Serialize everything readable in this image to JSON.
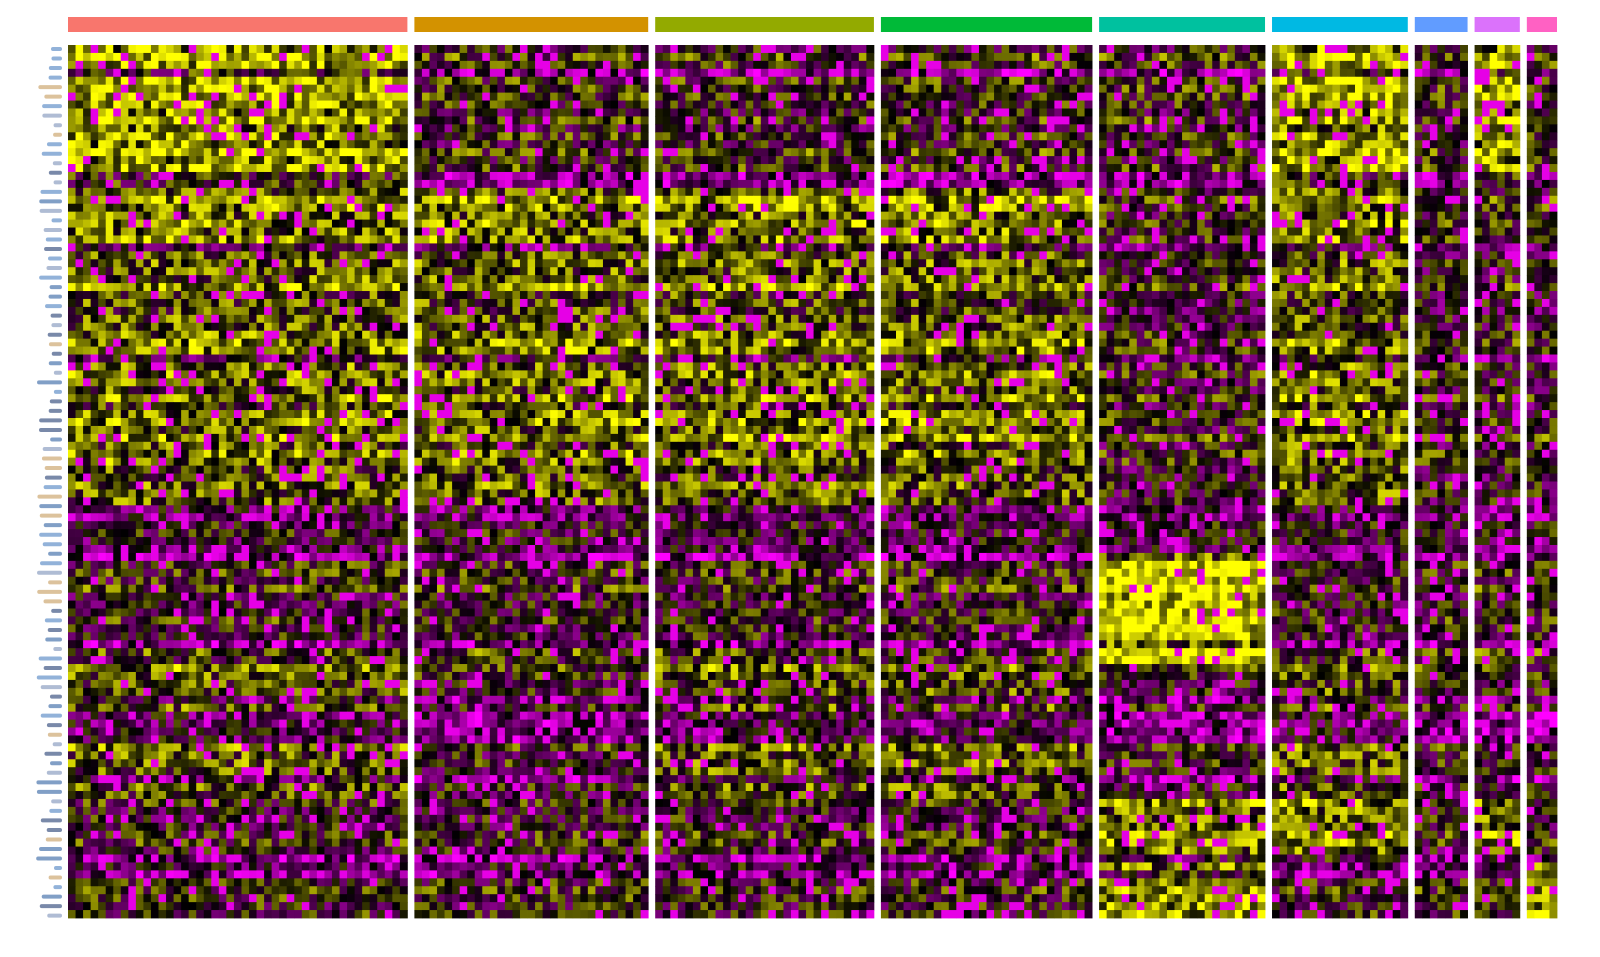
{
  "chart_data": {
    "type": "heatmap",
    "title": "",
    "xlabel": "",
    "ylabel": "",
    "legend": "none",
    "groups": [
      {
        "color": "#F8766D",
        "relative_cells": 45
      },
      {
        "color": "#D39200",
        "relative_cells": 31
      },
      {
        "color": "#93AA00",
        "relative_cells": 29
      },
      {
        "color": "#00BA38",
        "relative_cells": 28
      },
      {
        "color": "#00C19F",
        "relative_cells": 22
      },
      {
        "color": "#00B9E3",
        "relative_cells": 18
      },
      {
        "color": "#619CFF",
        "relative_cells": 7
      },
      {
        "color": "#DB72FB",
        "relative_cells": 6
      },
      {
        "color": "#FF61C3",
        "relative_cells": 4
      }
    ],
    "color_scale": {
      "low": "#FF00FF",
      "mid": "#000000",
      "high": "#FFFF00"
    },
    "group_separator_color": "#FFFFFF"
  }
}
